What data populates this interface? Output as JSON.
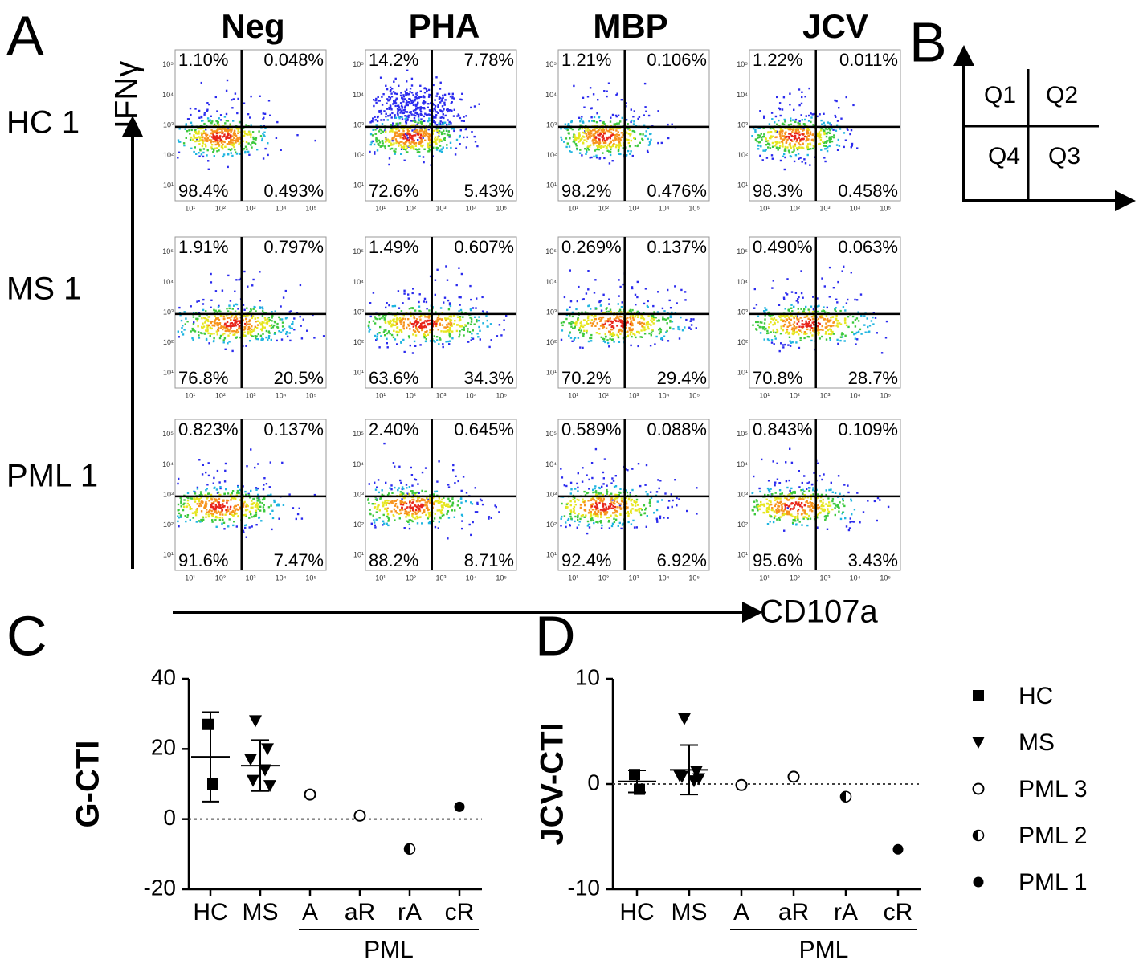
{
  "panel_a": "A",
  "flow": {
    "y_label": "IFNγ",
    "x_label": "CD107a",
    "ticks": [
      "10¹",
      "10²",
      "10³",
      "10⁴",
      "10⁵"
    ],
    "columns": [
      "Neg",
      "PHA",
      "MBP",
      "JCV"
    ],
    "rows": [
      {
        "label": "HC 1",
        "quadrants": [
          [
            "1.10%",
            "0.048%",
            "98.4%",
            "0.493%"
          ],
          [
            "14.2%",
            "7.78%",
            "72.6%",
            "5.43%"
          ],
          [
            "1.21%",
            "0.106%",
            "98.2%",
            "0.476%"
          ],
          [
            "1.22%",
            "0.011%",
            "98.3%",
            "0.458%"
          ]
        ]
      },
      {
        "label": "MS 1",
        "quadrants": [
          [
            "1.91%",
            "0.797%",
            "76.8%",
            "20.5%"
          ],
          [
            "1.49%",
            "0.607%",
            "63.6%",
            "34.3%"
          ],
          [
            "0.269%",
            "0.137%",
            "70.2%",
            "29.4%"
          ],
          [
            "0.490%",
            "0.063%",
            "70.8%",
            "28.7%"
          ]
        ]
      },
      {
        "label": "PML 1",
        "quadrants": [
          [
            "0.823%",
            "0.137%",
            "91.6%",
            "7.47%"
          ],
          [
            "2.40%",
            "0.645%",
            "88.2%",
            "8.71%"
          ],
          [
            "0.589%",
            "0.088%",
            "92.4%",
            "6.92%"
          ],
          [
            "0.843%",
            "0.109%",
            "95.6%",
            "3.43%"
          ]
        ]
      }
    ]
  },
  "quadrant_key": {
    "panel": "B",
    "labels": [
      "Q1",
      "Q2",
      "Q4",
      "Q3"
    ]
  },
  "chart_data": [
    {
      "type": "scatter",
      "panel": "C",
      "y_label": "G-CTI",
      "categories": [
        "HC",
        "MS",
        "A",
        "aR",
        "rA",
        "cR"
      ],
      "groups": [
        {
          "label": "PML",
          "categories": [
            "A",
            "aR",
            "rA",
            "cR"
          ]
        }
      ],
      "ylim": [
        -20,
        40
      ],
      "yticks": [
        -20,
        0,
        20,
        40
      ],
      "zero_line": true,
      "series": [
        {
          "name": "HC",
          "marker": "square",
          "color": "#000000",
          "x": [
            "HC",
            "HC"
          ],
          "values": [
            27,
            10
          ]
        },
        {
          "name": "MS",
          "marker": "triangle-down",
          "color": "#000000",
          "x": [
            "MS",
            "MS",
            "MS",
            "MS",
            "MS",
            "MS"
          ],
          "values": [
            28,
            20,
            17,
            14,
            11,
            9.5
          ]
        },
        {
          "name": "PML 3",
          "marker": "circle-open",
          "color": "#000000",
          "x": [
            "A",
            "aR"
          ],
          "values": [
            7,
            1
          ]
        },
        {
          "name": "PML 2",
          "marker": "circle-half",
          "color": "#000000",
          "x": [
            "rA"
          ],
          "values": [
            -8.5
          ]
        },
        {
          "name": "PML 1",
          "marker": "circle",
          "color": "#000000",
          "x": [
            "cR"
          ],
          "values": [
            3.5
          ]
        }
      ],
      "error_bars": [
        {
          "category": "HC",
          "mean": 17.75,
          "sd": 12.75
        },
        {
          "category": "MS",
          "mean": 15.25,
          "sd": 7.25
        }
      ]
    },
    {
      "type": "scatter",
      "panel": "D",
      "y_label": "JCV-CTI",
      "categories": [
        "HC",
        "MS",
        "A",
        "aR",
        "rA",
        "cR"
      ],
      "groups": [
        {
          "label": "PML",
          "categories": [
            "A",
            "aR",
            "rA",
            "cR"
          ]
        }
      ],
      "ylim": [
        -10,
        10
      ],
      "yticks": [
        -10,
        0,
        10
      ],
      "zero_line": true,
      "legend": "right",
      "series": [
        {
          "name": "HC",
          "marker": "square",
          "color": "#000000",
          "x": [
            "HC",
            "HC"
          ],
          "values": [
            0.9,
            -0.5
          ]
        },
        {
          "name": "MS",
          "marker": "triangle-down",
          "color": "#000000",
          "x": [
            "MS",
            "MS",
            "MS",
            "MS",
            "MS",
            "MS"
          ],
          "values": [
            6.2,
            1.2,
            0.8,
            0.3,
            0.7,
            0.5
          ]
        },
        {
          "name": "PML 3",
          "marker": "circle-open",
          "color": "#000000",
          "x": [
            "A",
            "aR"
          ],
          "values": [
            -0.1,
            0.7
          ]
        },
        {
          "name": "PML 2",
          "marker": "circle-half",
          "color": "#000000",
          "x": [
            "rA"
          ],
          "values": [
            -1.2
          ]
        },
        {
          "name": "PML 1",
          "marker": "circle",
          "color": "#000000",
          "x": [
            "cR"
          ],
          "values": [
            -6.2
          ]
        }
      ],
      "error_bars": [
        {
          "category": "HC",
          "mean": 0.25,
          "sd": 1.05
        },
        {
          "category": "MS",
          "mean": 1.35,
          "sd": 2.35
        }
      ]
    }
  ]
}
